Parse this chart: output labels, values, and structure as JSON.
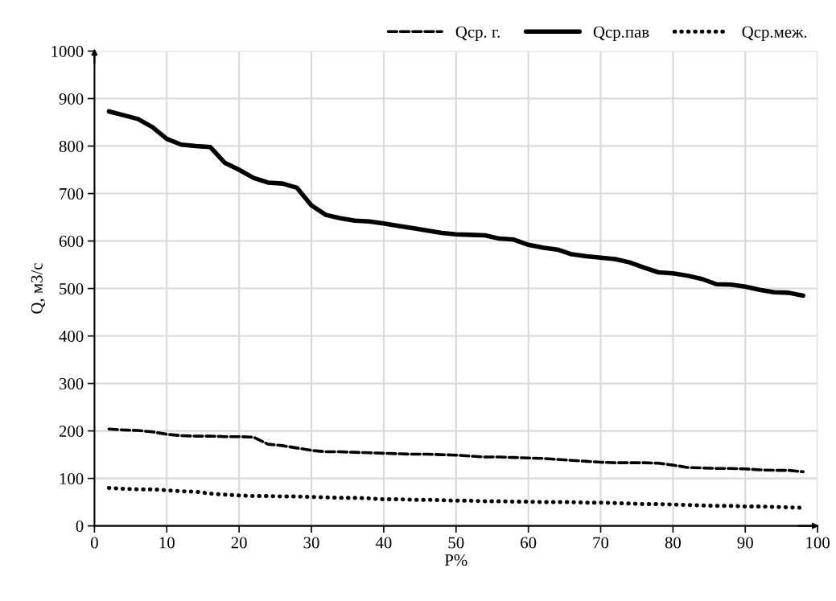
{
  "chart_data": {
    "type": "line",
    "xlabel": "P%",
    "ylabel": "Q, м3/с",
    "x": [
      2,
      4,
      6,
      8,
      10,
      12,
      14,
      16,
      18,
      20,
      22,
      24,
      26,
      28,
      30,
      32,
      34,
      36,
      38,
      40,
      42,
      44,
      46,
      48,
      50,
      52,
      54,
      56,
      58,
      60,
      62,
      64,
      66,
      68,
      70,
      72,
      74,
      76,
      78,
      80,
      82,
      84,
      86,
      88,
      90,
      92,
      94,
      96,
      98
    ],
    "series": [
      {
        "name": "Qср. г.",
        "color": "#000000",
        "line_style": "dashed",
        "values": [
          204,
          202,
          201,
          198,
          193,
          190,
          189,
          189,
          188,
          188,
          187,
          172,
          169,
          164,
          159,
          156,
          156,
          155,
          154,
          153,
          152,
          151,
          151,
          150,
          149,
          147,
          145,
          145,
          144,
          143,
          142,
          140,
          138,
          136,
          134,
          133,
          133,
          133,
          132,
          128,
          123,
          122,
          121,
          121,
          120,
          118,
          117,
          117,
          114
        ]
      },
      {
        "name": "Qср.пав",
        "color": "#000000",
        "line_style": "solid",
        "values": [
          873,
          865,
          857,
          840,
          815,
          803,
          800,
          798,
          765,
          750,
          733,
          723,
          721,
          712,
          675,
          655,
          648,
          643,
          641,
          637,
          632,
          627,
          622,
          617,
          614,
          613,
          612,
          605,
          603,
          592,
          586,
          582,
          572,
          568,
          565,
          562,
          555,
          544,
          534,
          532,
          527,
          520,
          509,
          508,
          504,
          497,
          492,
          491,
          485
        ]
      },
      {
        "name": "Qср.меж.",
        "color": "#000000",
        "line_style": "dotted",
        "values": [
          80,
          78,
          77,
          77,
          75,
          73,
          72,
          68,
          66,
          64,
          63,
          63,
          62,
          62,
          61,
          60,
          59,
          59,
          58,
          56,
          56,
          55,
          55,
          54,
          53,
          53,
          52,
          52,
          51,
          51,
          50,
          50,
          50,
          49,
          49,
          48,
          47,
          46,
          46,
          45,
          44,
          43,
          42,
          42,
          41,
          41,
          40,
          39,
          38
        ]
      }
    ],
    "xlim": [
      0,
      100
    ],
    "xticks": [
      0,
      10,
      20,
      30,
      40,
      50,
      60,
      70,
      80,
      90,
      100
    ],
    "ylim": [
      0,
      1000
    ],
    "yticks": [
      0,
      100,
      200,
      300,
      400,
      500,
      600,
      700,
      800,
      900,
      1000
    ],
    "grid": true,
    "legend": "top right",
    "marker": "none"
  }
}
